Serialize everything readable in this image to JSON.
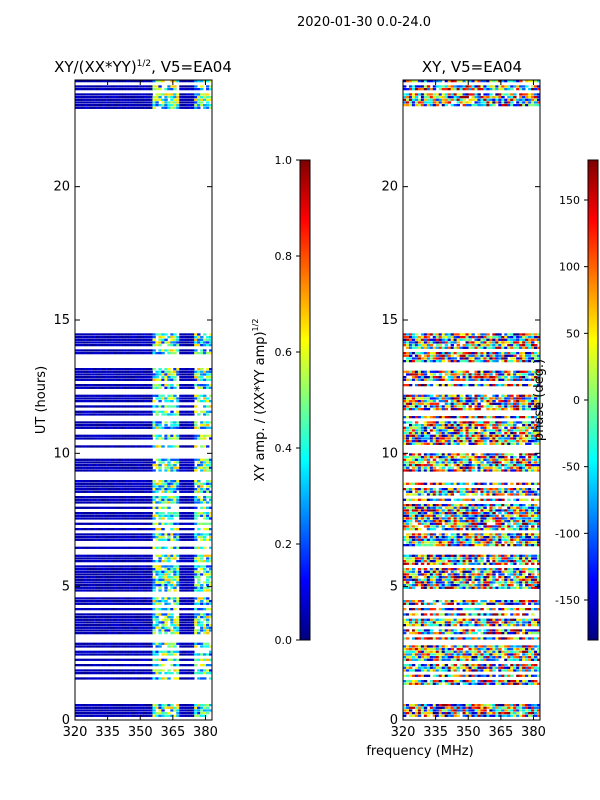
{
  "figure": {
    "suptitle": "2020-01-30 0.0-24.0",
    "xlabel": "frequency (MHz)"
  },
  "colors": {
    "jet": [
      "#00007f",
      "#0000ff",
      "#007fff",
      "#00ffff",
      "#7fff7f",
      "#ffff00",
      "#ff7f00",
      "#ff0000",
      "#7f0000"
    ],
    "navy": "#00008f"
  },
  "chart_data": [
    {
      "type": "heatmap",
      "title_main": "XY/(XX*YY)",
      "title_sup": "1/2",
      "title_rest": ", V5=EA04",
      "ylabel": "UT (hours)",
      "xlim": [
        320,
        383
      ],
      "ylim": [
        0,
        24
      ],
      "xticks": [
        320,
        335,
        350,
        365,
        380
      ],
      "yticks": [
        0,
        5,
        10,
        15,
        20
      ],
      "value_style": "amplitude",
      "data_bands_hours": [
        [
          0.1,
          0.6
        ],
        [
          1.3,
          2.1
        ],
        [
          2.2,
          4.6
        ],
        [
          4.8,
          6.2
        ],
        [
          6.4,
          9.0
        ],
        [
          9.3,
          10.0
        ],
        [
          10.2,
          12.2
        ],
        [
          12.4,
          13.2
        ],
        [
          13.4,
          14.5
        ],
        [
          22.9,
          24.0
        ]
      ],
      "colorbar": {
        "label_main": "XY amp. / (XX*YY amp)",
        "label_sup": "1/2",
        "range": [
          0.0,
          1.0
        ],
        "ticks": [
          "0.0",
          "0.2",
          "0.4",
          "0.6",
          "0.8",
          "1.0"
        ]
      }
    },
    {
      "type": "heatmap",
      "title_main": "XY, V5=EA04",
      "title_sup": "",
      "title_rest": "",
      "ylabel": "",
      "xlim": [
        320,
        383
      ],
      "ylim": [
        0,
        24
      ],
      "xticks": [
        320,
        335,
        350,
        365,
        380
      ],
      "yticks": [
        0,
        5,
        10,
        15,
        20
      ],
      "value_style": "phase",
      "data_bands_hours": [
        [
          0.1,
          0.6
        ],
        [
          1.3,
          2.1
        ],
        [
          2.2,
          4.6
        ],
        [
          4.8,
          6.2
        ],
        [
          6.4,
          9.0
        ],
        [
          9.3,
          10.0
        ],
        [
          10.2,
          12.2
        ],
        [
          12.4,
          13.2
        ],
        [
          13.4,
          14.5
        ],
        [
          22.9,
          24.0
        ]
      ],
      "colorbar": {
        "label_main": "phase (deg.)",
        "label_sup": "",
        "range": [
          -180,
          180
        ],
        "ticks": [
          "-150",
          "-100",
          "-50",
          "0",
          "50",
          "100",
          "150"
        ]
      }
    }
  ]
}
